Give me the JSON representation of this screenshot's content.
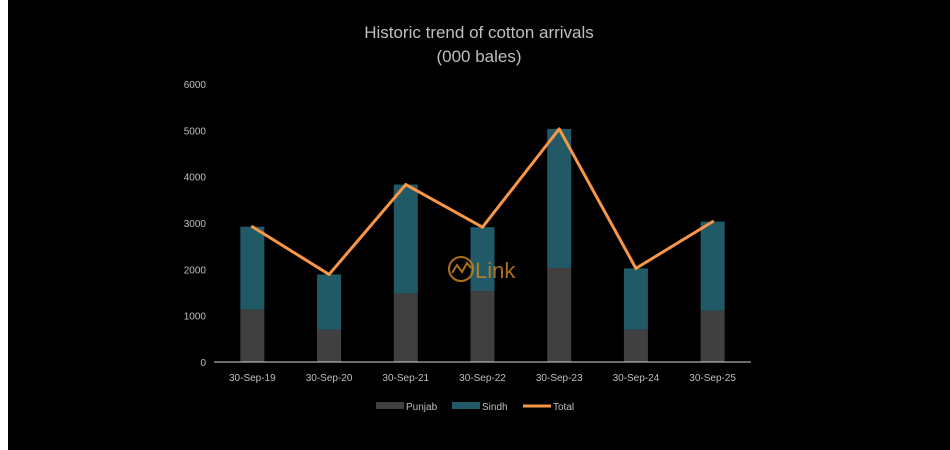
{
  "chart_data": {
    "type": "bar",
    "stacked": true,
    "title": "Historic trend of cotton arrivals",
    "subtitle": "(000 bales)",
    "categories": [
      "30-Sep-19",
      "30-Sep-20",
      "30-Sep-21",
      "30-Sep-22",
      "30-Sep-23",
      "30-Sep-24",
      "30-Sep-25"
    ],
    "series": [
      {
        "name": "Punjab",
        "type": "bar",
        "color": "#404040",
        "values": [
          1130,
          700,
          1480,
          1530,
          2030,
          700,
          1110
        ]
      },
      {
        "name": "Sindh",
        "type": "bar",
        "color": "#215967",
        "values": [
          1790,
          1190,
          2350,
          1380,
          3000,
          1320,
          1920
        ]
      },
      {
        "name": "Total",
        "type": "line",
        "color": "#f79646",
        "values": [
          2920,
          1890,
          3830,
          2910,
          5030,
          2020,
          3030
        ]
      }
    ],
    "ylim": [
      0,
      6000
    ],
    "yticks": [
      0,
      1000,
      2000,
      3000,
      4000,
      5000,
      6000
    ],
    "xlabel": "",
    "ylabel": "",
    "grid": false,
    "legend_position": "bottom"
  },
  "watermark": {
    "text": "Link",
    "color": "#c9841f"
  }
}
